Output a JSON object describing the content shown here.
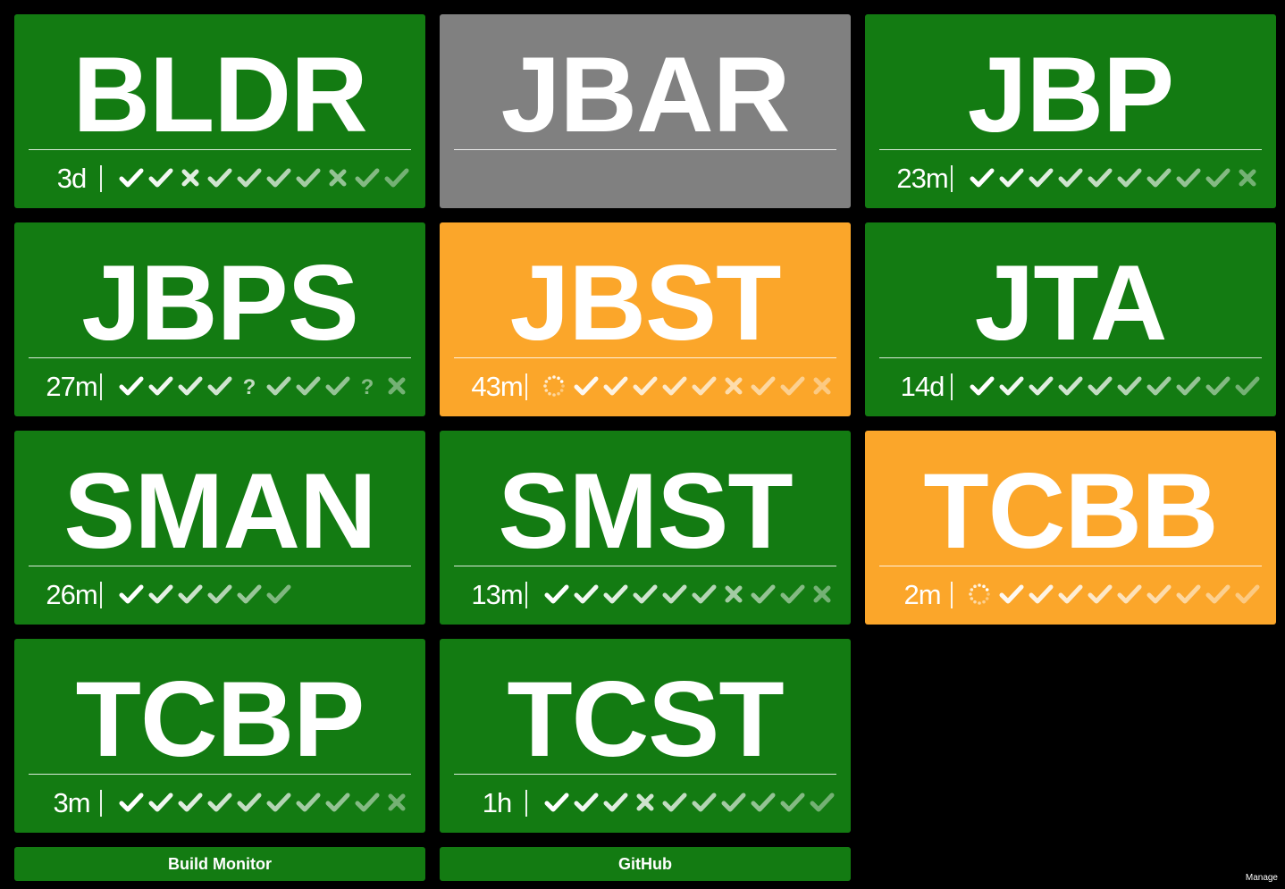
{
  "colors": {
    "success": "#137b12",
    "unknown": "#808080",
    "building": "#fba62a",
    "background": "#000000"
  },
  "tiles": [
    {
      "name": "BLDR",
      "status": "success",
      "time": "3d",
      "history": [
        "check",
        "check",
        "cross",
        "check",
        "check",
        "check",
        "check",
        "cross",
        "check",
        "check"
      ]
    },
    {
      "name": "JBAR",
      "status": "unknown",
      "time": "",
      "history": []
    },
    {
      "name": "JBP",
      "status": "success",
      "time": "23m",
      "history": [
        "check",
        "check",
        "check",
        "check",
        "check",
        "check",
        "check",
        "check",
        "check",
        "cross"
      ]
    },
    {
      "name": "JBPS",
      "status": "success",
      "time": "27m",
      "history": [
        "check",
        "check",
        "check",
        "check",
        "question",
        "check",
        "check",
        "check",
        "question",
        "cross"
      ]
    },
    {
      "name": "JBST",
      "status": "building",
      "time": "43m",
      "history": [
        "spinner",
        "check",
        "check",
        "check",
        "check",
        "check",
        "cross",
        "check",
        "check",
        "cross"
      ]
    },
    {
      "name": "JTA",
      "status": "success",
      "time": "14d",
      "history": [
        "check",
        "check",
        "check",
        "check",
        "check",
        "check",
        "check",
        "check",
        "check",
        "check"
      ]
    },
    {
      "name": "SMAN",
      "status": "success",
      "time": "26m",
      "history": [
        "check",
        "check",
        "check",
        "check",
        "check",
        "check"
      ]
    },
    {
      "name": "SMST",
      "status": "success",
      "time": "13m",
      "history": [
        "check",
        "check",
        "check",
        "check",
        "check",
        "check",
        "cross",
        "check",
        "check",
        "cross"
      ]
    },
    {
      "name": "TCBB",
      "status": "building",
      "time": "2m",
      "history": [
        "spinner",
        "check",
        "check",
        "check",
        "check",
        "check",
        "check",
        "check",
        "check",
        "check"
      ]
    },
    {
      "name": "TCBP",
      "status": "success",
      "time": "3m",
      "history": [
        "check",
        "check",
        "check",
        "check",
        "check",
        "check",
        "check",
        "check",
        "check",
        "cross"
      ]
    },
    {
      "name": "TCST",
      "status": "success",
      "time": "1h",
      "history": [
        "check",
        "check",
        "check",
        "cross",
        "check",
        "check",
        "check",
        "check",
        "check",
        "check"
      ]
    }
  ],
  "footer": {
    "build_monitor_label": "Build Monitor",
    "github_label": "GitHub",
    "manage_label": "Manage"
  }
}
